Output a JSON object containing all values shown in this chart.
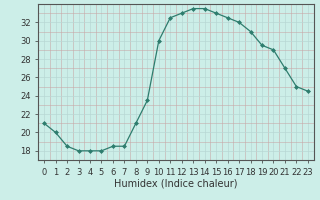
{
  "x": [
    0,
    1,
    2,
    3,
    4,
    5,
    6,
    7,
    8,
    9,
    10,
    11,
    12,
    13,
    14,
    15,
    16,
    17,
    18,
    19,
    20,
    21,
    22,
    23
  ],
  "y": [
    21,
    20,
    18.5,
    18,
    18,
    18,
    18.5,
    18.5,
    21,
    23.5,
    30,
    32.5,
    33,
    33.5,
    33.5,
    33,
    32.5,
    32,
    31,
    29.5,
    29,
    27,
    25,
    24.5
  ],
  "line_color": "#2e7d6e",
  "marker": "D",
  "marker_size": 2.0,
  "bg_color": "#cceee8",
  "grid_color_major": "#b8d8d4",
  "grid_color_minor": "#d4ecea",
  "xlabel": "Humidex (Indice chaleur)",
  "xlim": [
    -0.5,
    23.5
  ],
  "ylim": [
    17.0,
    34.0
  ],
  "yticks": [
    18,
    20,
    22,
    24,
    26,
    28,
    30,
    32
  ],
  "xticks": [
    0,
    1,
    2,
    3,
    4,
    5,
    6,
    7,
    8,
    9,
    10,
    11,
    12,
    13,
    14,
    15,
    16,
    17,
    18,
    19,
    20,
    21,
    22,
    23
  ],
  "xtick_labels": [
    "0",
    "1",
    "2",
    "3",
    "4",
    "5",
    "6",
    "7",
    "8",
    "9",
    "10",
    "11",
    "12",
    "13",
    "14",
    "15",
    "16",
    "17",
    "18",
    "19",
    "20",
    "21",
    "22",
    "23"
  ],
  "axis_color": "#555555",
  "tick_color": "#333333",
  "label_fontsize": 7,
  "tick_fontsize": 6
}
